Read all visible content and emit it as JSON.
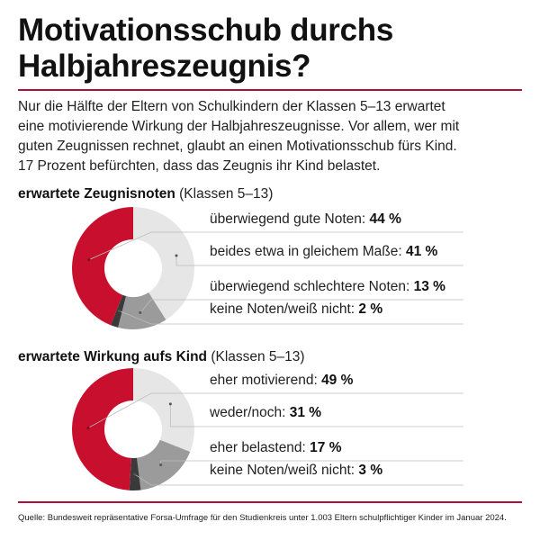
{
  "title": {
    "line1": "Motivationsschub durchs",
    "line2": "Halbjahreszeugnis?"
  },
  "intro": {
    "line1": "Nur die Hälfte der Eltern von Schulkindern der Klassen 5–13 erwartet",
    "line2": "eine motivierende Wirkung der Halbjahreszeugnisse. Vor allem, wer mit",
    "line3": "guten Zeugnissen rechnet, glaubt an einen Motivationsschub fürs Kind.",
    "line4": "17 Prozent befürchten, dass das Zeugnis ihr Kind belastet."
  },
  "colors": {
    "accent": "#c8102e",
    "rule": "#b0113a",
    "light": "#e6e6e6",
    "mid": "#9b9b9b",
    "dark": "#3a3a3a",
    "leader": "#bdbdbd"
  },
  "chart_data": [
    {
      "type": "pie",
      "donut": true,
      "title_bold": "erwartete Zeugnisnoten",
      "title_rest": " (Klassen 5–13)",
      "unit": "%",
      "series": [
        {
          "label": "überwiegend gute Noten:",
          "value": 44,
          "display": "44 %",
          "color": "#c8102e"
        },
        {
          "label": "beides etwa in gleichem Maße:",
          "value": 41,
          "display": "41 %",
          "color": "#e6e6e6"
        },
        {
          "label": "überwiegend schlechtere Noten:",
          "value": 13,
          "display": "13 %",
          "color": "#9b9b9b"
        },
        {
          "label": "keine Noten/weiß nicht:",
          "value": 2,
          "display": "2 %",
          "color": "#3a3a3a"
        }
      ]
    },
    {
      "type": "pie",
      "donut": true,
      "title_bold": "erwartete Wirkung aufs Kind",
      "title_rest": " (Klassen 5–13)",
      "unit": "%",
      "series": [
        {
          "label": "eher motivierend:",
          "value": 49,
          "display": "49 %",
          "color": "#c8102e"
        },
        {
          "label": "weder/noch:",
          "value": 31,
          "display": "31 %",
          "color": "#e6e6e6"
        },
        {
          "label": "eher belastend:",
          "value": 17,
          "display": "17 %",
          "color": "#9b9b9b"
        },
        {
          "label": "keine Noten/weiß nicht:",
          "value": 3,
          "display": "3 %",
          "color": "#3a3a3a"
        }
      ]
    }
  ],
  "source": "Quelle: Bundesweit repräsentative Forsa-Umfrage für den Studienkreis unter 1.003 Eltern schulpflichtiger Kinder im Januar 2024."
}
